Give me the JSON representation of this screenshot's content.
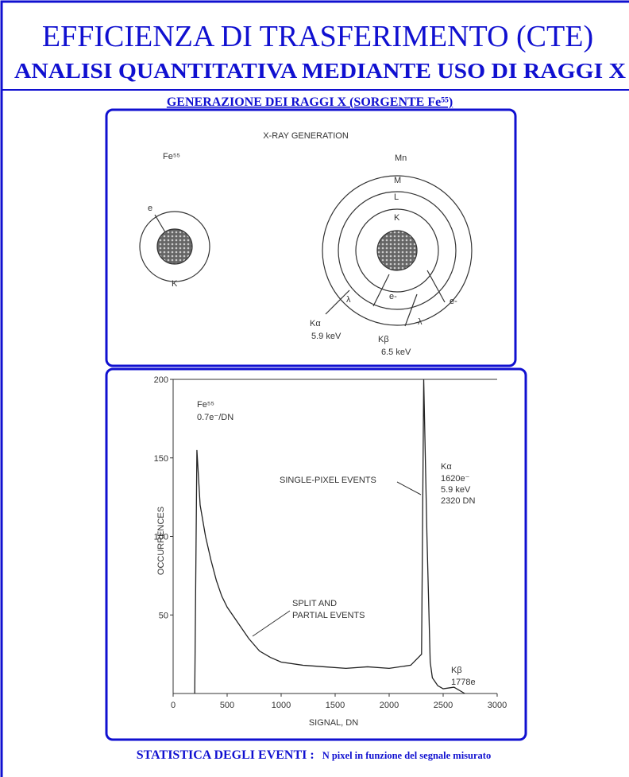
{
  "header": {
    "title": "EFFICIENZA DI TRASFERIMENTO (CTE)",
    "subtitle": "ANALISI QUANTITATIVA MEDIANTE USO DI RAGGI X"
  },
  "section_heading": "GENERAZIONE DEI RAGGI X (SORGENTE Fe⁵⁵)",
  "diagram": {
    "title": "X-RAY GENERATION",
    "source": "Fe⁵⁵",
    "target": "Mn",
    "labels": [
      "e",
      "K",
      "M",
      "L",
      "K",
      "λ",
      "e-",
      "e-",
      "λ",
      "Kα",
      "5.9 keV",
      "Kβ",
      "6.5 keV"
    ]
  },
  "chart_data": {
    "type": "line",
    "x": [
      200,
      220,
      250,
      300,
      350,
      400,
      450,
      500,
      600,
      700,
      800,
      900,
      1000,
      1200,
      1400,
      1600,
      1800,
      2000,
      2200,
      2300,
      2320,
      2350,
      2380,
      2400,
      2450,
      2500,
      2600,
      2700
    ],
    "series": [
      {
        "color": "#222222",
        "values": [
          0,
          155,
          120,
          100,
          85,
          72,
          62,
          55,
          45,
          35,
          27,
          23,
          20,
          18,
          17,
          16,
          17,
          16,
          18,
          25,
          200,
          100,
          20,
          10,
          5,
          3,
          4,
          0
        ]
      }
    ],
    "xlim": [
      0,
      3000
    ],
    "ylim": [
      0,
      200
    ],
    "xticks": [
      0,
      500,
      1000,
      1500,
      2000,
      2500,
      3000
    ],
    "yticks": [
      50,
      100,
      150,
      200
    ],
    "xlabel": "SIGNAL, DN",
    "ylabel": "OCCURRENCES",
    "annotations": [
      "Fe⁵⁵",
      "0.7e⁻/DN",
      "SINGLE-PIXEL EVENTS",
      "Kα",
      "1620e⁻",
      "5.9 keV",
      "2320 DN",
      "SPLIT AND",
      "PARTIAL EVENTS",
      "Kβ",
      "1778e"
    ]
  },
  "footer": {
    "label": "STATISTICA DEGLI EVENTI :",
    "text": "N pixel in funzione del segnale misurato"
  }
}
